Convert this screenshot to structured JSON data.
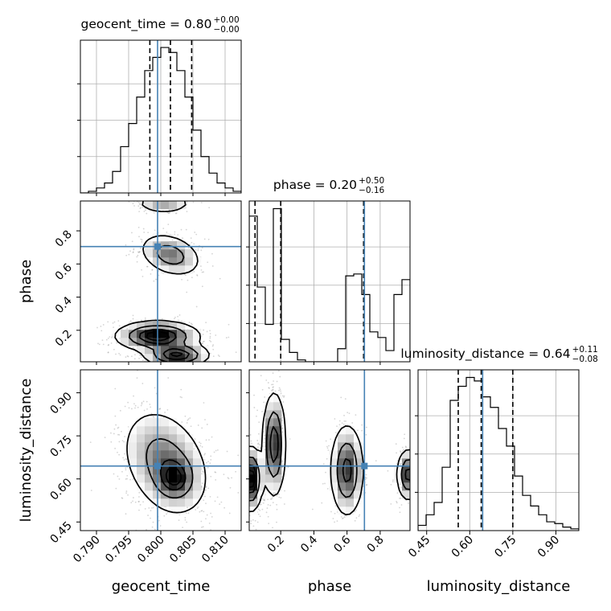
{
  "colors": {
    "truth": "#4682b4",
    "line": "#000000",
    "grid": "#b0b0b0"
  },
  "chart_data": {
    "type": "corner",
    "parameters": [
      "geocent_time",
      "phase",
      "luminosity_distance"
    ],
    "truths": {
      "geocent_time": 0.7995,
      "phase": 0.705,
      "luminosity_distance": 0.645
    },
    "titles": [
      {
        "param": "geocent_time",
        "label": "geocent_time = 0.80",
        "sup": "+0.00",
        "sub": "−0.00"
      },
      {
        "param": "phase",
        "label": "phase = 0.20",
        "sup": "+0.50",
        "sub": "−0.16"
      },
      {
        "param": "luminosity_distance",
        "label": "luminosity_distance = 0.64",
        "sup": "+0.11",
        "sub": "−0.08"
      }
    ],
    "axes": {
      "geocent_time": {
        "label": "geocent_time",
        "range": [
          0.7875,
          0.8125
        ],
        "ticks": [
          "0.790",
          "0.795",
          "0.800",
          "0.805",
          "0.810"
        ]
      },
      "phase": {
        "label": "phase",
        "range": [
          0.01,
          0.98
        ],
        "ticks": [
          "0.2",
          "0.4",
          "0.6",
          "0.8"
        ]
      },
      "luminosity_distance": {
        "label": "luminosity_distance",
        "range": [
          0.42,
          0.98
        ],
        "ticks": [
          "0.45",
          "0.60",
          "0.75",
          "0.90"
        ]
      }
    },
    "histograms": {
      "geocent_time": {
        "edges": [
          0.7875,
          0.78875,
          0.79,
          0.79125,
          0.7925,
          0.79375,
          0.795,
          0.79625,
          0.7975,
          0.79875,
          0.8,
          0.80125,
          0.8025,
          0.80375,
          0.805,
          0.80625,
          0.8075,
          0.80875,
          0.81,
          0.81125,
          0.8125
        ],
        "counts": [
          0,
          1,
          3,
          6,
          13,
          28,
          42,
          58,
          74,
          82,
          88,
          85,
          74,
          58,
          38,
          22,
          12,
          6,
          3,
          1
        ],
        "quantiles": [
          0.7983,
          0.8015,
          0.8048
        ]
      },
      "phase": {
        "edges": [
          0.01,
          0.0585,
          0.107,
          0.1555,
          0.204,
          0.2525,
          0.301,
          0.3495,
          0.398,
          0.4465,
          0.495,
          0.5435,
          0.592,
          0.6405,
          0.689,
          0.7375,
          0.786,
          0.8345,
          0.883,
          0.9315,
          0.98
        ],
        "counts": [
          78,
          40,
          20,
          82,
          12,
          5,
          1,
          0,
          0,
          0,
          0,
          7,
          46,
          47,
          36,
          16,
          13,
          6,
          36,
          44
        ],
        "quantiles": [
          0.045,
          0.2,
          0.7
        ]
      },
      "luminosity_distance": {
        "edges": [
          0.42,
          0.448,
          0.476,
          0.504,
          0.532,
          0.56,
          0.588,
          0.616,
          0.644,
          0.672,
          0.7,
          0.728,
          0.756,
          0.784,
          0.812,
          0.84,
          0.868,
          0.896,
          0.924,
          0.952,
          0.98
        ],
        "counts": [
          3,
          9,
          16,
          36,
          74,
          82,
          87,
          85,
          76,
          70,
          58,
          48,
          31,
          20,
          14,
          9,
          5,
          4,
          2,
          1
        ],
        "quantiles": [
          0.56,
          0.64,
          0.75
        ]
      }
    },
    "density_2d": [
      {
        "x": "geocent_time",
        "y": "phase",
        "modes": [
          {
            "cx": 0.8005,
            "cy": 0.965,
            "sx": 0.0022,
            "sy": 0.03,
            "w": 0.7
          },
          {
            "cx": 0.8015,
            "cy": 0.655,
            "sx": 0.0024,
            "sy": 0.065,
            "w": 1.0,
            "rho": -0.3
          },
          {
            "cx": 0.7995,
            "cy": 0.165,
            "sx": 0.0032,
            "sy": 0.045,
            "w": 1.8
          },
          {
            "cx": 0.8025,
            "cy": 0.05,
            "sx": 0.0025,
            "sy": 0.035,
            "w": 1.6
          }
        ],
        "levels": [
          0.12,
          0.39,
          0.68,
          0.86
        ]
      },
      {
        "x": "geocent_time",
        "y": "luminosity_distance",
        "modes": [
          {
            "cx": 0.8008,
            "cy": 0.655,
            "sx": 0.0034,
            "sy": 0.095,
            "w": 1.0,
            "rho": -0.3
          },
          {
            "cx": 0.8022,
            "cy": 0.6,
            "sx": 0.0016,
            "sy": 0.04,
            "w": 0.9
          }
        ],
        "levels": [
          0.12,
          0.39,
          0.68,
          0.86
        ]
      },
      {
        "x": "phase",
        "y": "luminosity_distance",
        "modes": [
          {
            "cx": 0.16,
            "cy": 0.72,
            "sx": 0.035,
            "sy": 0.09,
            "w": 1.0
          },
          {
            "cx": 0.02,
            "cy": 0.6,
            "sx": 0.035,
            "sy": 0.055,
            "w": 1.2
          },
          {
            "cx": 0.6,
            "cy": 0.63,
            "sx": 0.05,
            "sy": 0.08,
            "w": 0.9
          },
          {
            "cx": 0.97,
            "cy": 0.615,
            "sx": 0.035,
            "sy": 0.045,
            "w": 0.9
          }
        ],
        "levels": [
          0.12,
          0.39,
          0.68,
          0.86
        ]
      }
    ],
    "grid": true
  }
}
